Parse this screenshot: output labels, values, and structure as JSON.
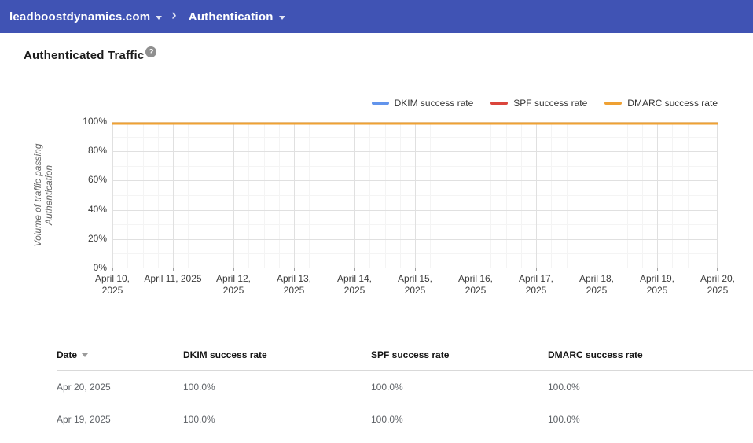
{
  "colors": {
    "topbar_bg": "#4053B4",
    "grid_minor": "#f4f4f4",
    "grid_major": "#e0e0e0",
    "axis_line": "#616161",
    "tick_mark": "#9e9e9e"
  },
  "topbar": {
    "domain": "leadboostdynamics.com",
    "separator": "›",
    "section": "Authentication"
  },
  "page": {
    "title": "Authenticated Traffic",
    "help_glyph": "?"
  },
  "chart_data": {
    "type": "line",
    "title": "",
    "xlabel": "",
    "ylabel": "Volume of traffic passing Authentication",
    "ylim": [
      0,
      100
    ],
    "grid": true,
    "legend_position": "top-right",
    "yticks": [
      0,
      20,
      40,
      60,
      80,
      100
    ],
    "ytick_labels": [
      "0%",
      "20%",
      "40%",
      "60%",
      "80%",
      "100%"
    ],
    "x": [
      "April 10, 2025",
      "April 11, 2025",
      "April 12, 2025",
      "April 13, 2025",
      "April 14, 2025",
      "April 15, 2025",
      "April 16, 2025",
      "April 17, 2025",
      "April 18, 2025",
      "April 19, 2025",
      "April 20, 2025"
    ],
    "xtick_lines": [
      [
        "April 10,",
        "2025"
      ],
      [
        "April 11, 2025"
      ],
      [
        "April 12,",
        "2025"
      ],
      [
        "April 13,",
        "2025"
      ],
      [
        "April 14,",
        "2025"
      ],
      [
        "April 15,",
        "2025"
      ],
      [
        "April 16,",
        "2025"
      ],
      [
        "April 17,",
        "2025"
      ],
      [
        "April 18,",
        "2025"
      ],
      [
        "April 19,",
        "2025"
      ],
      [
        "April 20,",
        "2025"
      ]
    ],
    "series": [
      {
        "name": "DKIM success rate",
        "color": "#6294EC",
        "values": [
          100,
          100,
          100,
          100,
          100,
          100,
          100,
          100,
          100,
          100,
          100
        ]
      },
      {
        "name": "SPF success rate",
        "color": "#DB453C",
        "values": [
          100,
          100,
          100,
          100,
          100,
          100,
          100,
          100,
          100,
          100,
          100
        ]
      },
      {
        "name": "DMARC success rate",
        "color": "#EFA133",
        "values": [
          100,
          100,
          100,
          100,
          100,
          100,
          100,
          100,
          100,
          100,
          100
        ]
      }
    ]
  },
  "table": {
    "columns": [
      "Date",
      "DKIM success rate",
      "SPF success rate",
      "DMARC success rate"
    ],
    "sort_column": "Date",
    "sort_direction": "desc",
    "rows": [
      [
        "Apr 20, 2025",
        "100.0%",
        "100.0%",
        "100.0%"
      ],
      [
        "Apr 19, 2025",
        "100.0%",
        "100.0%",
        "100.0%"
      ]
    ]
  }
}
